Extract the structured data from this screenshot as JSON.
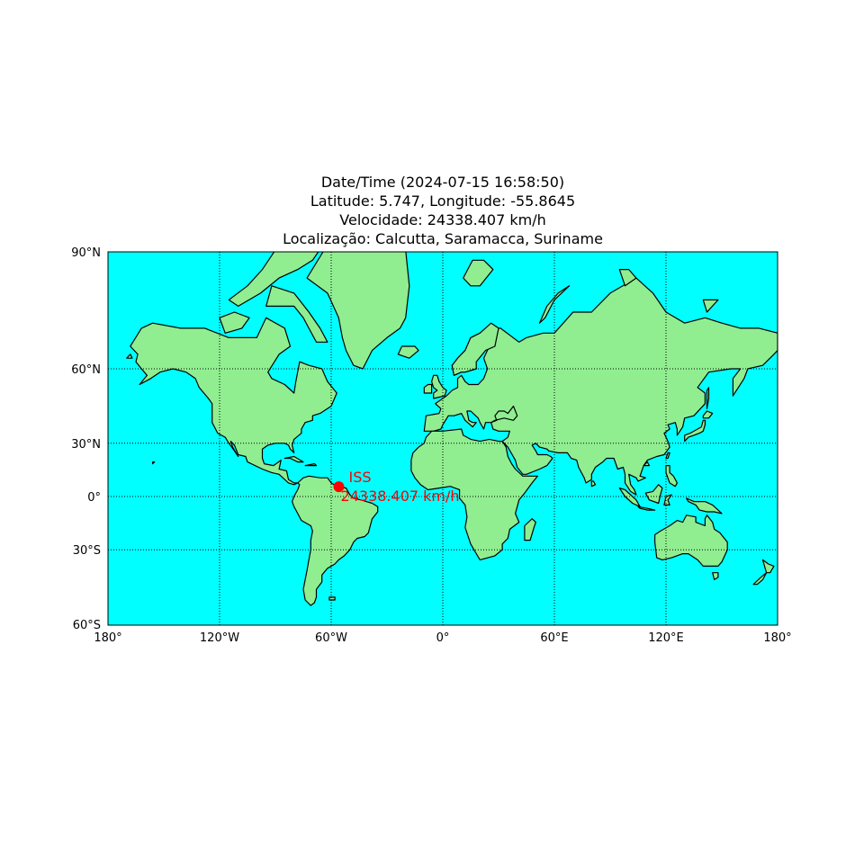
{
  "title": {
    "line1": "Date/Time (2024-07-15 16:58:50)",
    "line2": "Latitude: 5.747, Longitude: -55.8645",
    "line3": "Velocidade: 24338.407 km/h",
    "line4": "Localização: Calcutta, Saramacca, Suriname"
  },
  "map": {
    "projection": "mercator",
    "lon_range": [
      -180,
      180
    ],
    "lat_range": [
      -60,
      90
    ],
    "ocean_color": "#00ffff",
    "land_color": "#90ee90",
    "coast_color": "#000000",
    "graticule": "dotted",
    "parallels": [
      {
        "lat": 90,
        "label": "90°N"
      },
      {
        "lat": 60,
        "label": "60°N"
      },
      {
        "lat": 30,
        "label": "30°N"
      },
      {
        "lat": 0,
        "label": "0°"
      },
      {
        "lat": -30,
        "label": "30°S"
      },
      {
        "lat": -60,
        "label": "60°S"
      }
    ],
    "meridians": [
      {
        "lon": -180,
        "label": "180°"
      },
      {
        "lon": -120,
        "label": "120°W"
      },
      {
        "lon": -60,
        "label": "60°W"
      },
      {
        "lon": 0,
        "label": "0°"
      },
      {
        "lon": 60,
        "label": "60°E"
      },
      {
        "lon": 120,
        "label": "120°E"
      },
      {
        "lon": 180,
        "label": "180°"
      }
    ]
  },
  "marker": {
    "lat": 5.747,
    "lon": -55.8645,
    "color": "#ff0000",
    "label": "ISS",
    "speed_label": "24338.407 km/h"
  }
}
